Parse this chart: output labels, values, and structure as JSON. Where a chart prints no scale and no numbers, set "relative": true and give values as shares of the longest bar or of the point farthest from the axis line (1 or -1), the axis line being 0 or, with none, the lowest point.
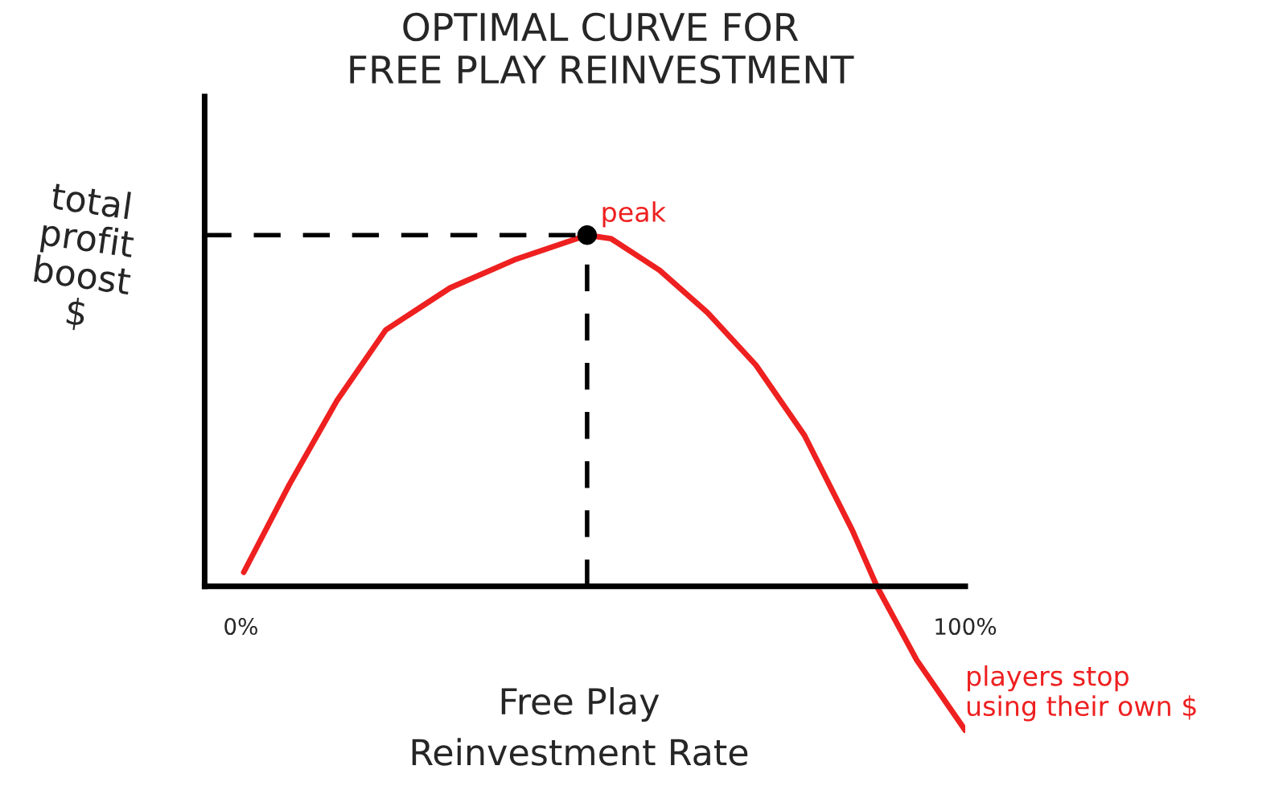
{
  "chart_data": {
    "type": "line",
    "title": "OPTIMAL CURVE FOR\nFREE PLAY REINVESTMENT",
    "xlabel": "Free Play\nReinvestment Rate",
    "ylabel": "total\nprofit\nboost\n$",
    "relative": true,
    "x": [
      0.4,
      6.7,
      13.3,
      20,
      28.9,
      37.8,
      47.8,
      51.1,
      57.8,
      64.4,
      71.1,
      77.8,
      84.4,
      87.8,
      93.3,
      100
    ],
    "series": [
      {
        "color": "#ee2020",
        "values": [
          0.04,
          0.29,
          0.53,
          0.73,
          0.85,
          0.93,
          1.0,
          0.99,
          0.9,
          0.78,
          0.63,
          0.43,
          0.16,
          0,
          -0.21,
          -0.41
        ]
      },
      {
        "type": "scatter",
        "color": "#000000",
        "x": [
          47.8
        ],
        "values": [
          1.0
        ]
      }
    ],
    "xlim": [
      -5,
      100
    ],
    "xticks": [
      {
        "value": 0,
        "label": "0%"
      },
      {
        "value": 100,
        "label": "100%"
      }
    ],
    "tick_labels": "x",
    "ref_lines": [
      {
        "axis": "y",
        "value": 1.0,
        "color": "#000000",
        "line_style": "dashed"
      },
      {
        "axis": "x",
        "value": 47.8,
        "color": "#000000",
        "line_style": "dashed"
      }
    ],
    "annotations": [
      {
        "text": "peak",
        "x": 47.8,
        "y": 1.0
      },
      {
        "text": "players stop\nusing their own $",
        "x": 100,
        "y": -0.41
      }
    ],
    "grid": false
  }
}
